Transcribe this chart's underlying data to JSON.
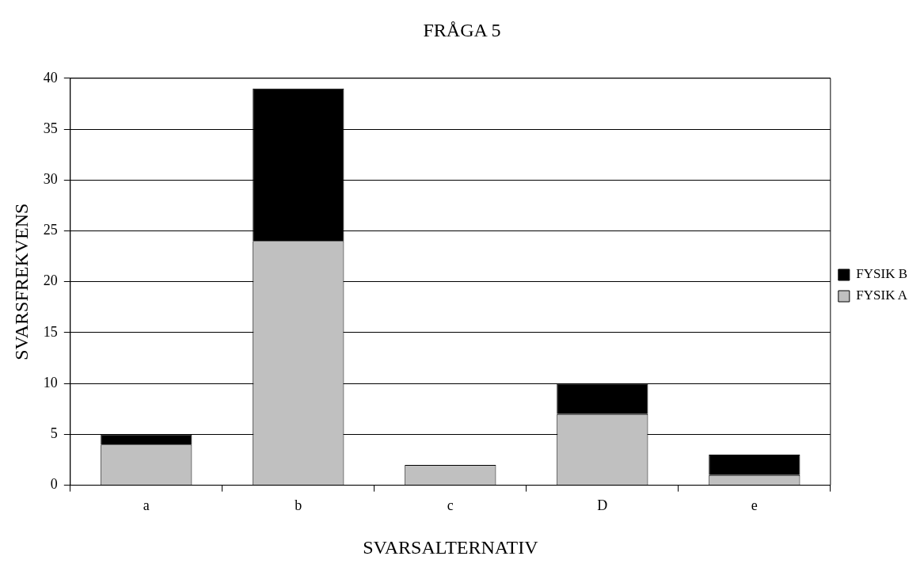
{
  "chart_data": {
    "type": "bar",
    "title": "FRÅGA 5",
    "xlabel": "SVARSALTERNATIV",
    "ylabel": "SVARSFREKVENS",
    "categories": [
      "a",
      "b",
      "c",
      "D",
      "e"
    ],
    "series": [
      {
        "name": "FYSIK A",
        "color": "#c0c0c0",
        "values": [
          4,
          24,
          2,
          7,
          1
        ]
      },
      {
        "name": "FYSIK B",
        "color": "#000000",
        "values": [
          1,
          15,
          0,
          3,
          2
        ]
      }
    ],
    "stacked": true,
    "ylim": [
      0,
      40
    ],
    "yticks": [
      0,
      5,
      10,
      15,
      20,
      25,
      30,
      35,
      40
    ],
    "grid": "y",
    "legend": "right"
  }
}
